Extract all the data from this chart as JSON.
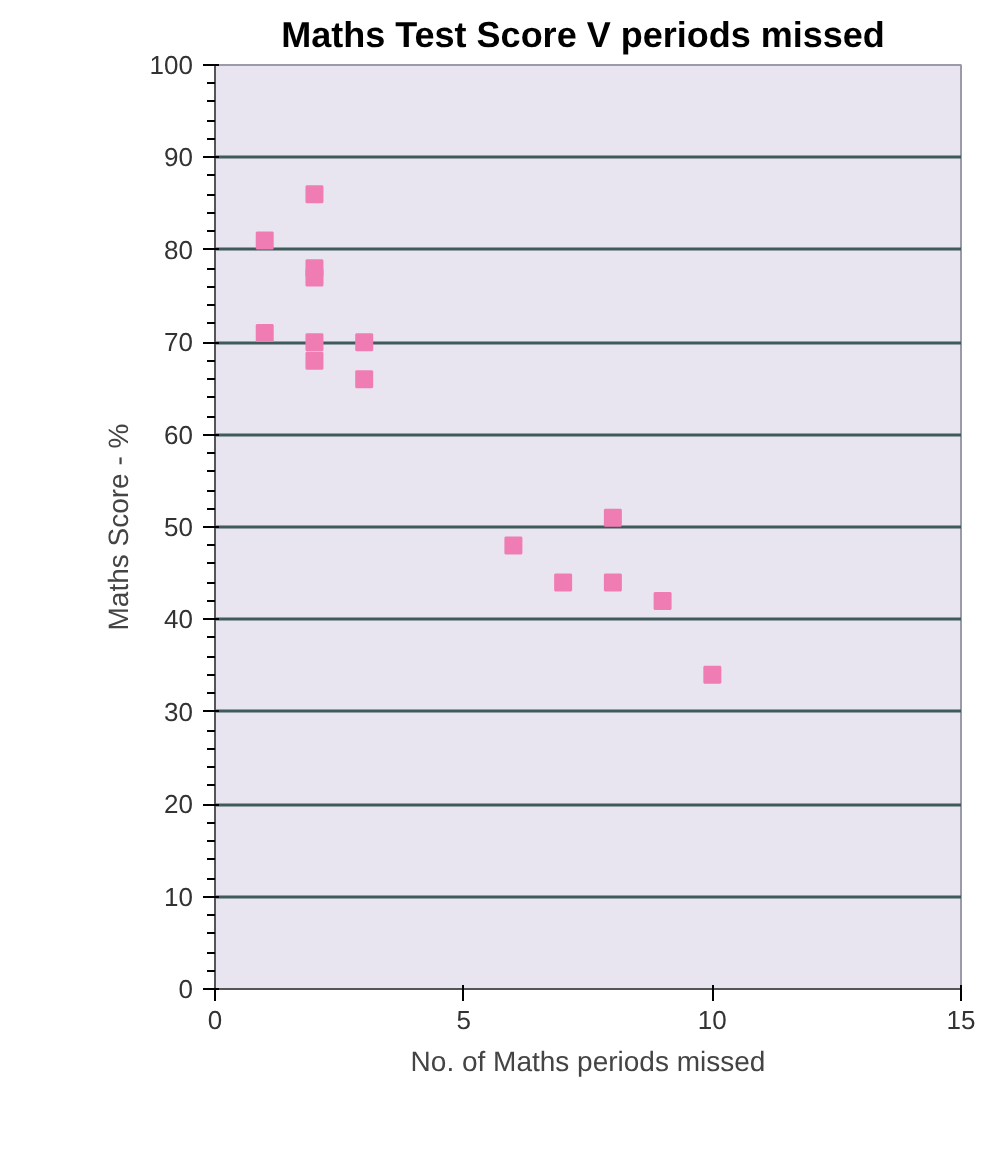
{
  "chart_data": {
    "type": "scatter",
    "title": "Maths Test Score V  periods missed",
    "xlabel": "No. of Maths periods missed",
    "ylabel": "Maths Score - %",
    "x": [
      1,
      1,
      2,
      2,
      2,
      2,
      2,
      3,
      3,
      6,
      7,
      8,
      8,
      9,
      10
    ],
    "series": [
      {
        "color": "#f07cb4",
        "values": [
          81,
          71,
          86,
          78,
          77,
          70,
          68,
          70,
          66,
          48,
          44,
          51,
          44,
          42,
          34
        ]
      }
    ],
    "xlim": [
      0,
      15
    ],
    "xticks": [
      0,
      5,
      10,
      15
    ],
    "ylim": [
      0,
      100
    ],
    "yticks": [
      0,
      10,
      20,
      30,
      40,
      50,
      60,
      70,
      80,
      90,
      100
    ],
    "grid": "y",
    "marker": "square"
  }
}
